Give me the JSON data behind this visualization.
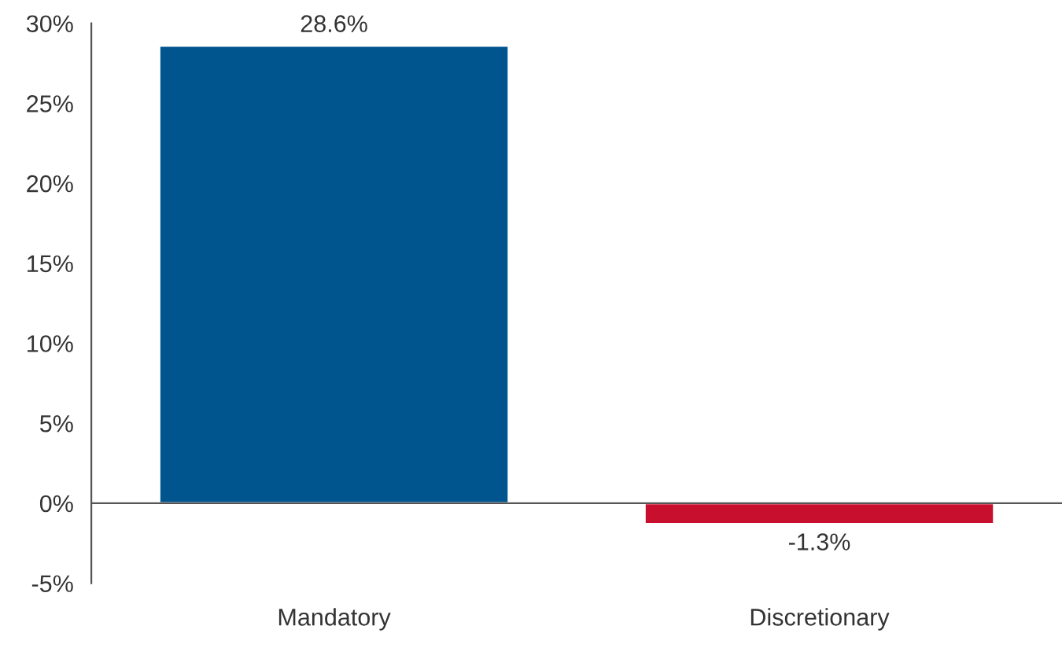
{
  "chart_data": {
    "type": "bar",
    "categories": [
      "Mandatory",
      "Discretionary"
    ],
    "values": [
      28.6,
      -1.3
    ],
    "colors": [
      "#00558f",
      "#c8102e"
    ],
    "value_labels": [
      "28.6%",
      "-1.3%"
    ],
    "ylim": [
      -5,
      30
    ],
    "yticks": [
      {
        "value": -5,
        "label": "-5%"
      },
      {
        "value": 0,
        "label": "0%"
      },
      {
        "value": 5,
        "label": "5%"
      },
      {
        "value": 10,
        "label": "10%"
      },
      {
        "value": 15,
        "label": "15%"
      },
      {
        "value": 20,
        "label": "20%"
      },
      {
        "value": 25,
        "label": "25%"
      },
      {
        "value": 30,
        "label": "30%"
      }
    ],
    "legend": false
  }
}
